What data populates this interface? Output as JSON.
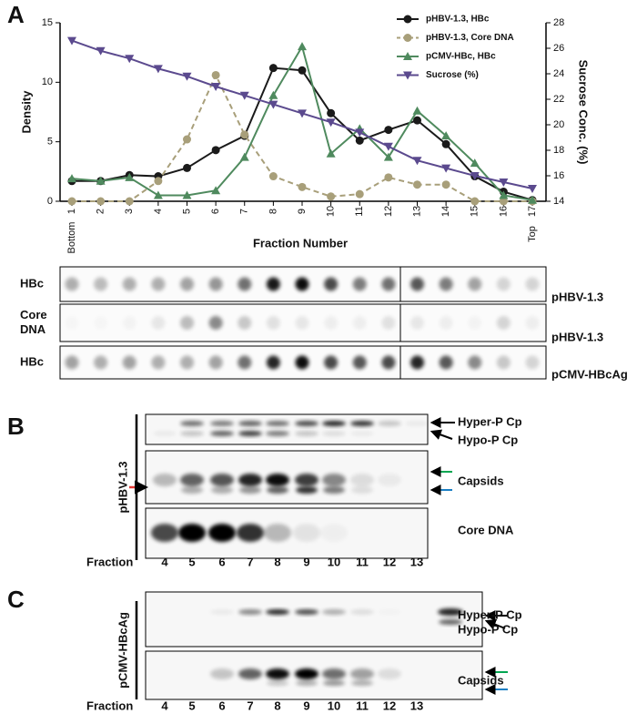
{
  "chart_data": {
    "type": "line",
    "x": [
      1,
      2,
      3,
      4,
      5,
      6,
      7,
      8,
      9,
      10,
      11,
      12,
      13,
      14,
      15,
      16,
      17
    ],
    "xlim": [
      1,
      17
    ],
    "xticks": [
      1,
      2,
      3,
      4,
      5,
      6,
      7,
      8,
      9,
      10,
      11,
      12,
      13,
      14,
      15,
      16,
      17
    ],
    "xlabel": "Fraction Number",
    "ylabel": "Density",
    "y2label": "Sucrose Conc. (%)",
    "ylim": [
      0,
      15
    ],
    "yticks": [
      0,
      5,
      10,
      15
    ],
    "y2lim": [
      14,
      28
    ],
    "y2ticks": [
      14,
      16,
      18,
      20,
      22,
      24,
      26,
      28
    ],
    "annotations": [
      "Bottom",
      "Top"
    ],
    "legend": "upper right",
    "series": [
      {
        "name": "pHBV-1.3, HBc",
        "color": "#1a1a1a",
        "marker": "circle",
        "dash": false,
        "values": [
          1.7,
          1.7,
          2.2,
          2.1,
          2.8,
          4.3,
          5.5,
          11.2,
          11.0,
          7.4,
          5.1,
          6.0,
          6.8,
          4.8,
          2.1,
          0.8,
          0.1
        ]
      },
      {
        "name": "pHBV-1.3, Core DNA",
        "color": "#a89f7a",
        "marker": "circle",
        "dash": true,
        "values": [
          0,
          0,
          0,
          1.7,
          5.2,
          10.6,
          5.6,
          2.1,
          1.2,
          0.4,
          0.6,
          2.0,
          1.4,
          1.4,
          0,
          0,
          0
        ]
      },
      {
        "name": "pCMV-HBc, HBc",
        "color": "#4f8a5e",
        "marker": "triangle",
        "dash": false,
        "values": [
          1.9,
          1.7,
          2.0,
          0.5,
          0.5,
          0.9,
          3.7,
          8.9,
          13.0,
          4.0,
          6.1,
          3.7,
          7.6,
          5.5,
          3.2,
          0.5,
          0.1
        ]
      },
      {
        "name": "Sucrose (%)",
        "color": "#5b4a8e",
        "marker": "triangle-down",
        "dash": false,
        "axis": "y2",
        "values": [
          26.6,
          25.8,
          25.2,
          24.4,
          23.8,
          23.0,
          22.3,
          21.6,
          20.9,
          20.2,
          19.4,
          18.3,
          17.2,
          16.6,
          16.0,
          15.5,
          15.0
        ]
      }
    ]
  },
  "panel_labels": [
    "A",
    "B",
    "C"
  ],
  "dot_blot": {
    "rows": [
      {
        "label_lines": [
          "HBc"
        ],
        "construct": "pHBV-1.3"
      },
      {
        "label_lines": [
          "Core",
          "DNA"
        ],
        "construct": "pHBV-1.3"
      },
      {
        "label_lines": [
          "HBc"
        ],
        "construct": "pCMV-HBcAg"
      }
    ]
  },
  "panel_b": {
    "construct": "pHBV-1.3",
    "bands": [
      "Hyper-P Cp",
      "Hypo-P Cp",
      "Capsids",
      "Core DNA"
    ],
    "fraction_label": "Fraction",
    "fractions": [
      "4",
      "5",
      "6",
      "7",
      "8",
      "9",
      "10",
      "11",
      "12",
      "13"
    ]
  },
  "panel_c": {
    "construct": "pCMV-HBcAg",
    "bands": [
      "Hyper-P Cp",
      "Hypo-P Cp",
      "Capsids"
    ],
    "fraction_label": "Fraction",
    "fractions": [
      "4",
      "5",
      "6",
      "7",
      "8",
      "9",
      "10",
      "11",
      "12",
      "13"
    ]
  }
}
